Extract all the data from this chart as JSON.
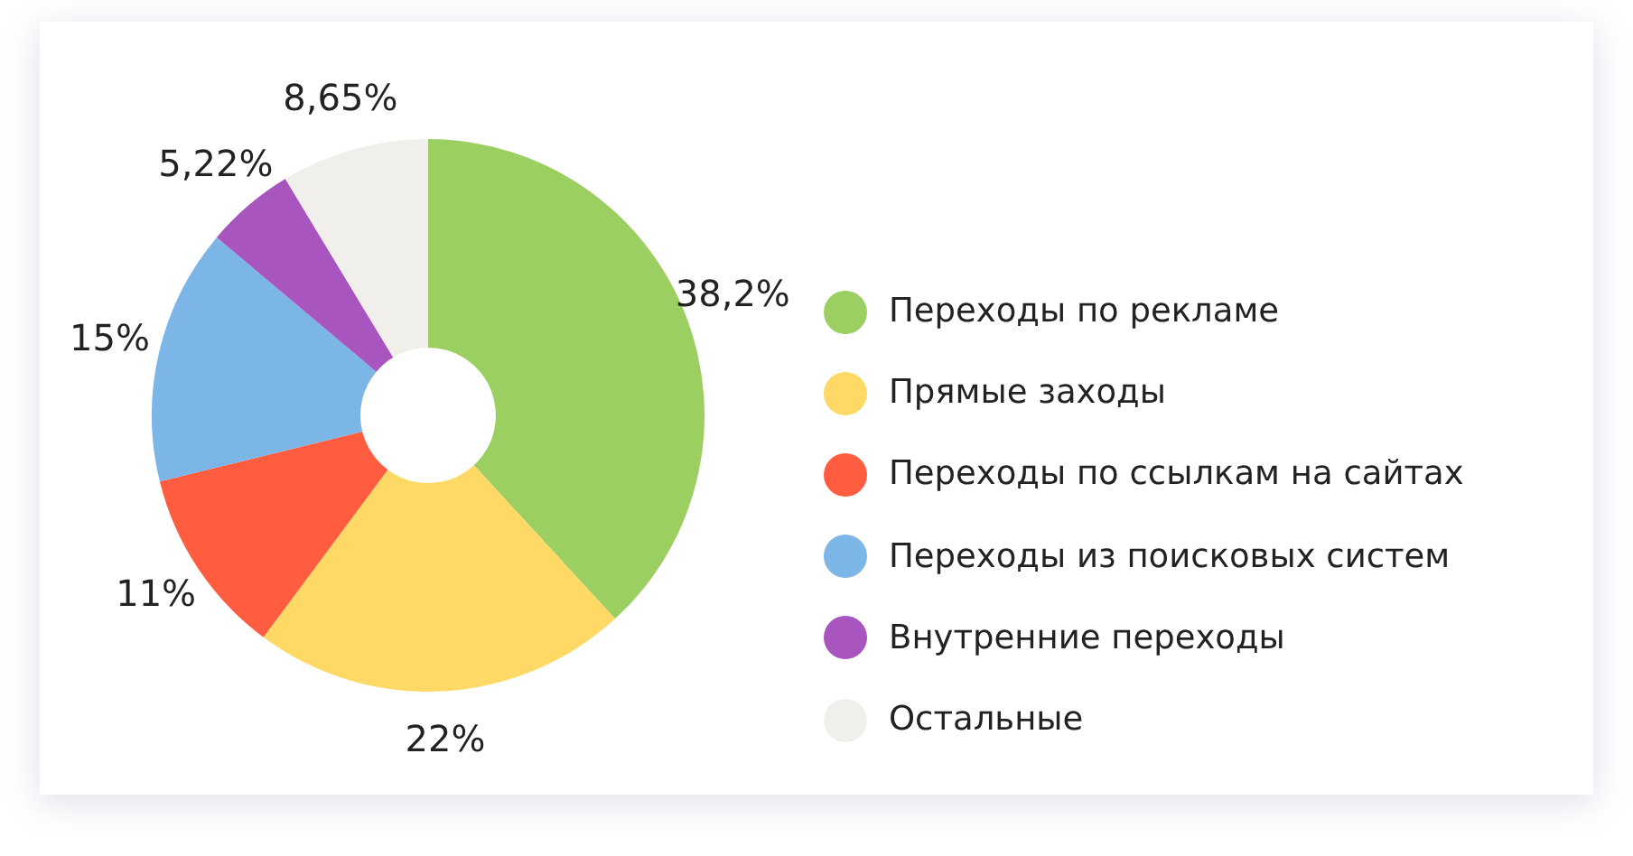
{
  "chart_data": {
    "type": "donut",
    "categories": [
      "Переходы по рекламе",
      "Прямые заходы",
      "Переходы по ссылкам на сайтах",
      "Переходы из поисковых систем",
      "Внутренние переходы",
      "Остальные"
    ],
    "values": [
      38.2,
      22,
      11,
      15,
      5.22,
      8.65
    ],
    "value_labels": [
      "38,2%",
      "22%",
      "11%",
      "15%",
      "5,22%",
      "8,65%"
    ],
    "colors": [
      "#9ccf62",
      "#ffd966",
      "#ff5c40",
      "#7bb6e6",
      "#a855bf",
      "#f0efeb"
    ],
    "legend": "right"
  }
}
